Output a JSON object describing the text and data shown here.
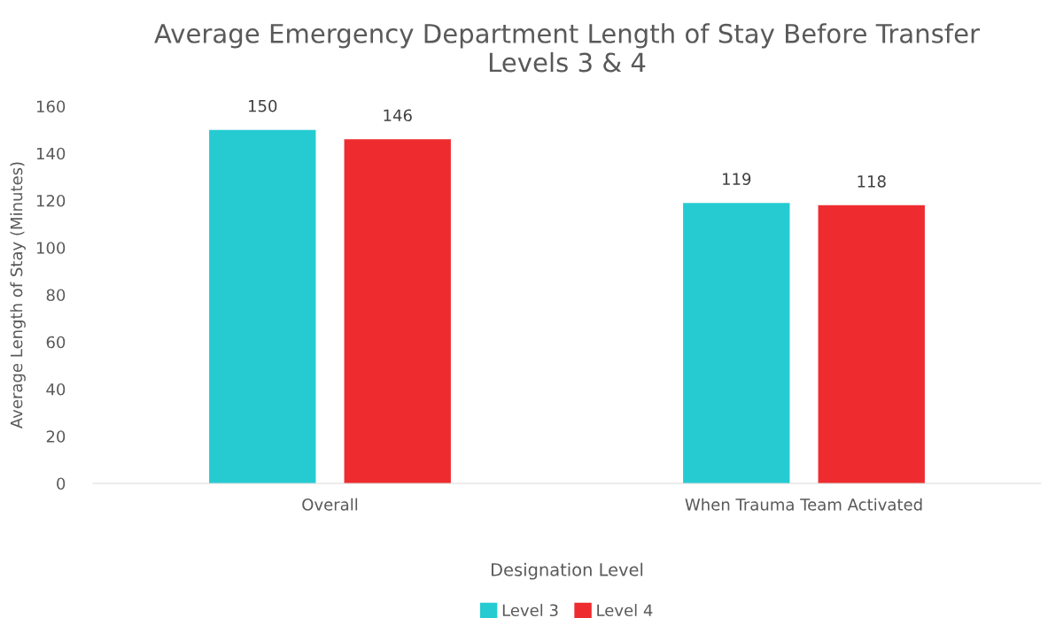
{
  "chart_data": {
    "type": "bar",
    "title": "Average Emergency Department Length of Stay Before Transfer\nLevels 3 & 4",
    "xlabel": "Designation Level",
    "ylabel": "Average Length of Stay (Minutes)",
    "categories": [
      "Overall",
      "When Trauma Team Activated"
    ],
    "series": [
      {
        "name": "Level 3",
        "color": "#26cbd2",
        "values": [
          150,
          119
        ]
      },
      {
        "name": "Level 4",
        "color": "#ee2c2f",
        "values": [
          146,
          118
        ]
      }
    ],
    "ylim": [
      0,
      160
    ],
    "yticks": [
      0,
      20,
      40,
      60,
      80,
      100,
      120,
      140,
      160
    ],
    "data_labels": true,
    "legend": "bottom",
    "grid": false
  }
}
